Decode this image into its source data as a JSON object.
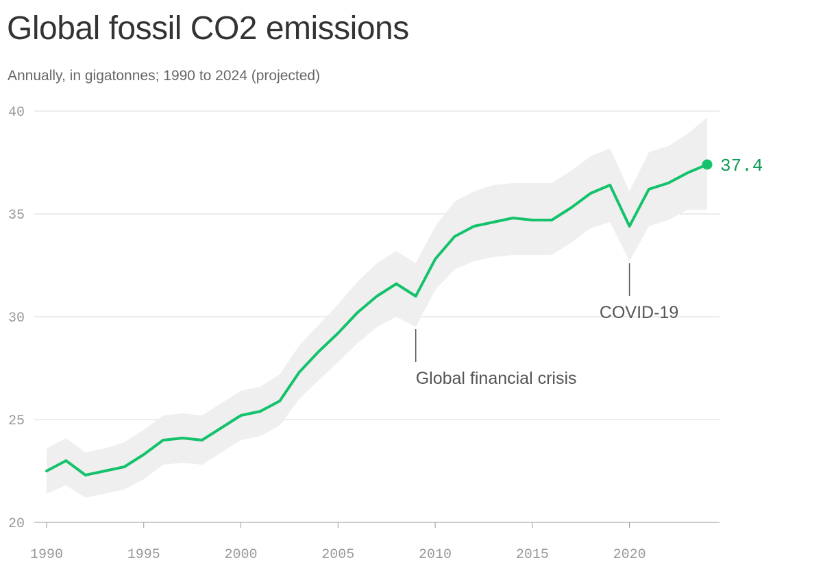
{
  "colors": {
    "series": "#13c26b",
    "band": "#efefef",
    "last_value_text": "#0f9a52"
  },
  "chart_data": {
    "type": "line",
    "title": "Global fossil CO2 emissions",
    "subtitle": "Annually, in gigatonnes; 1990 to 2024 (projected)",
    "xlabel": "",
    "ylabel": "",
    "xlim": [
      1990,
      2024
    ],
    "ylim": [
      20,
      40
    ],
    "grid": true,
    "x_ticks": [
      1990,
      1995,
      2000,
      2005,
      2010,
      2015,
      2020
    ],
    "y_ticks": [
      20,
      25,
      30,
      35,
      40
    ],
    "x": [
      1990,
      1991,
      1992,
      1993,
      1994,
      1995,
      1996,
      1997,
      1998,
      1999,
      2000,
      2001,
      2002,
      2003,
      2004,
      2005,
      2006,
      2007,
      2008,
      2009,
      2010,
      2011,
      2012,
      2013,
      2014,
      2015,
      2016,
      2017,
      2018,
      2019,
      2020,
      2021,
      2022,
      2023,
      2024
    ],
    "series": [
      {
        "values": [
          22.5,
          23.0,
          22.3,
          22.5,
          22.7,
          23.3,
          24.0,
          24.1,
          24.0,
          24.6,
          25.2,
          25.4,
          25.9,
          27.3,
          28.3,
          29.2,
          30.2,
          31.0,
          31.6,
          31.0,
          32.8,
          33.9,
          34.4,
          34.6,
          34.8,
          34.7,
          34.7,
          35.3,
          36.0,
          36.4,
          34.4,
          36.2,
          36.5,
          37.0,
          37.4
        ],
        "lower": [
          21.4,
          21.8,
          21.2,
          21.4,
          21.6,
          22.1,
          22.8,
          22.9,
          22.8,
          23.4,
          24.0,
          24.2,
          24.7,
          26.0,
          26.9,
          27.8,
          28.7,
          29.5,
          30.0,
          29.5,
          31.3,
          32.3,
          32.7,
          32.9,
          33.0,
          33.0,
          33.0,
          33.6,
          34.3,
          34.6,
          32.7,
          34.4,
          34.7,
          35.2,
          35.2
        ],
        "upper": [
          23.6,
          24.1,
          23.4,
          23.6,
          23.9,
          24.5,
          25.2,
          25.3,
          25.2,
          25.8,
          26.4,
          26.6,
          27.2,
          28.6,
          29.6,
          30.6,
          31.7,
          32.6,
          33.2,
          32.6,
          34.4,
          35.6,
          36.1,
          36.4,
          36.5,
          36.5,
          36.5,
          37.1,
          37.8,
          38.2,
          36.1,
          38.0,
          38.3,
          38.9,
          39.7
        ]
      }
    ],
    "last_value_label": "37.4",
    "annotations": [
      {
        "x": 2009,
        "text": "Global financial crisis"
      },
      {
        "x": 2020,
        "text": "COVID-19"
      }
    ]
  }
}
